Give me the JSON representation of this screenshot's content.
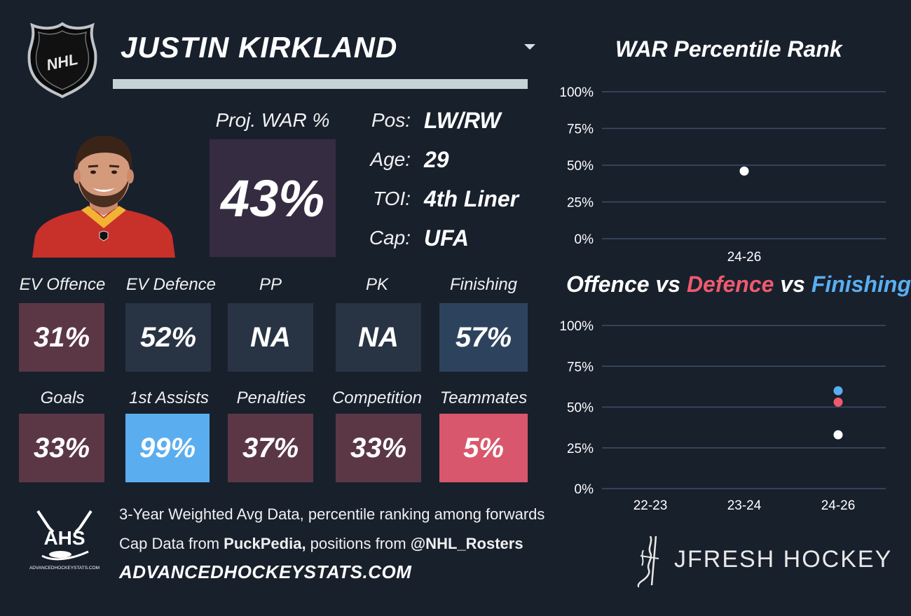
{
  "header": {
    "player_name": "JUSTIN KIRKLAND",
    "logo_text": "NHL"
  },
  "proj_war": {
    "label": "Proj. WAR %",
    "value": "43%"
  },
  "info": [
    {
      "key": "Pos:",
      "value": "LW/RW"
    },
    {
      "key": "Age:",
      "value": "29"
    },
    {
      "key": "TOI:",
      "value": "4th Liner"
    },
    {
      "key": "Cap:",
      "value": "UFA"
    }
  ],
  "tiles": [
    {
      "label": "EV Offence",
      "value": "31%",
      "color": "#5b3746"
    },
    {
      "label": "EV Defence",
      "value": "52%",
      "color": "#283343"
    },
    {
      "label": "PP",
      "value": "NA",
      "color": "#283343"
    },
    {
      "label": "PK",
      "value": "NA",
      "color": "#283343"
    },
    {
      "label": "Finishing",
      "value": "57%",
      "color": "#2d435d"
    },
    {
      "label": "Goals",
      "value": "33%",
      "color": "#5b3746"
    },
    {
      "label": "1st Assists",
      "value": "99%",
      "color": "#5aaef0"
    },
    {
      "label": "Penalties",
      "value": "37%",
      "color": "#5b3746"
    },
    {
      "label": "Competition",
      "value": "33%",
      "color": "#5b3746"
    },
    {
      "label": "Teammates",
      "value": "5%",
      "color": "#d9576c"
    }
  ],
  "footer": {
    "line1": "3-Year Weighted Avg Data, percentile ranking among forwards",
    "line2_prefix": "Cap Data from ",
    "line2_source1": "PuckPedia,",
    "line2_middle": " positions from ",
    "line2_source2": "@NHL_Rosters",
    "site": "ADVANCEDHOCKEYSTATS.COM",
    "ahs_logo_text": "AHS",
    "ahs_logo_small": "ADVANCEDHOCKEYSTATS.COM",
    "brand": "JFRESH HOCKEY"
  },
  "chart_data": [
    {
      "type": "scatter",
      "title": "WAR Percentile Rank",
      "categories": [
        "24-26"
      ],
      "ylim": [
        0,
        100
      ],
      "yticks": [
        "0%",
        "25%",
        "50%",
        "75%",
        "100%"
      ],
      "grid": true,
      "series": [
        {
          "values": [
            46
          ],
          "color": "#ffffff"
        }
      ]
    },
    {
      "type": "scatter",
      "title_parts": [
        "Offence",
        " vs ",
        "Defence",
        " vs ",
        "Finishing"
      ],
      "title_colors": [
        "#ffffff",
        "#ffffff",
        "#ee5a6e",
        "#ffffff",
        "#5aaef0"
      ],
      "categories": [
        "22-23",
        "23-24",
        "24-26"
      ],
      "ylim": [
        0,
        100
      ],
      "yticks": [
        "0%",
        "25%",
        "50%",
        "75%",
        "100%"
      ],
      "grid": true,
      "series": [
        {
          "name": "Offence",
          "values": [
            null,
            null,
            33
          ],
          "color": "#ffffff"
        },
        {
          "name": "Defence",
          "values": [
            null,
            null,
            53
          ],
          "color": "#ee5a6e"
        },
        {
          "name": "Finishing",
          "values": [
            null,
            null,
            60
          ],
          "color": "#5aaef0"
        }
      ]
    }
  ]
}
